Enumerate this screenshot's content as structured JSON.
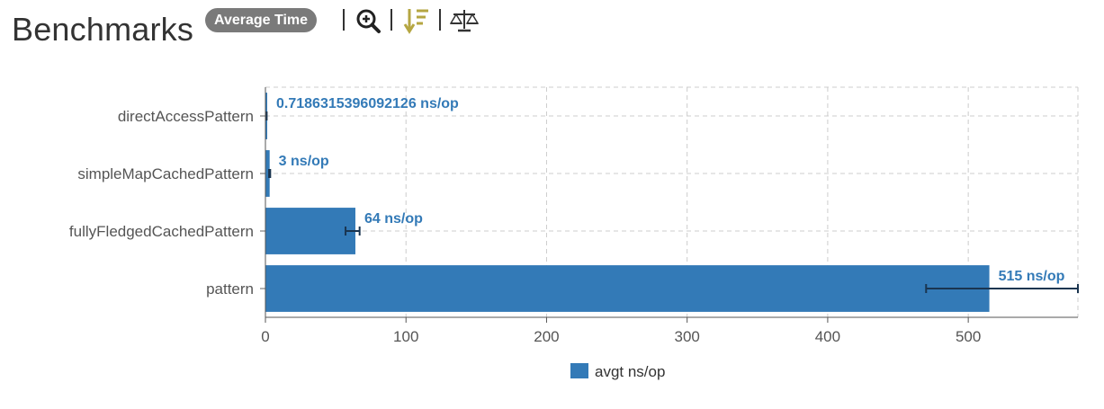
{
  "header": {
    "title": "Benchmarks",
    "mode_badge": "Average Time",
    "icons": [
      "zoom-in-icon",
      "sort-descending-icon",
      "compare-scale-icon"
    ],
    "sort_icon_color": "#b5a642"
  },
  "chart_data": {
    "type": "bar",
    "orientation": "horizontal",
    "categories": [
      "directAccessPattern",
      "simpleMapCachedPattern",
      "fullyFledgedCachedPattern",
      "pattern"
    ],
    "series": [
      {
        "name": "avgt ns/op",
        "values": [
          0.7186315396092126,
          3,
          64,
          515
        ],
        "error_low": [
          0.6,
          2.6,
          57,
          470
        ],
        "error_high": [
          0.9,
          3.4,
          67,
          578
        ],
        "data_labels": [
          "0.7186315396092126 ns/op",
          "3 ns/op",
          "64 ns/op",
          "515 ns/op"
        ],
        "color": "#337ab7"
      }
    ],
    "xlim": [
      0,
      578
    ],
    "xticks": [
      0,
      100,
      200,
      300,
      400,
      500
    ],
    "grid": true,
    "legend": "bottom-center",
    "xlabel": "",
    "ylabel": ""
  }
}
